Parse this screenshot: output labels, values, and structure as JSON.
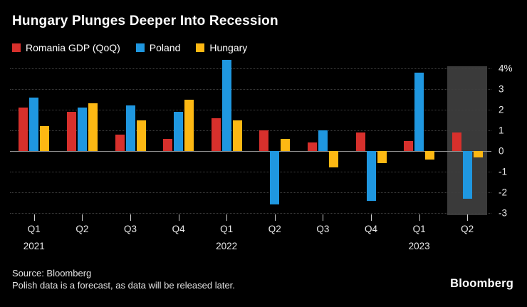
{
  "title": "Hungary Plunges Deeper Into Recession",
  "source": {
    "line1": "Source: Bloomberg",
    "line2": "Polish data is a forecast, as data will be released later."
  },
  "branding": {
    "logo": "Bloomberg"
  },
  "chart_data": {
    "type": "bar",
    "title": "Hungary Plunges Deeper Into Recession",
    "categories": [
      "Q1 2021",
      "Q2 2021",
      "Q3 2021",
      "Q4 2021",
      "Q1 2022",
      "Q2 2022",
      "Q3 2022",
      "Q4 2022",
      "Q1 2023",
      "Q2 2023"
    ],
    "x_tick_labels": [
      "Q1",
      "Q2",
      "Q3",
      "Q4",
      "Q1",
      "Q2",
      "Q3",
      "Q4",
      "Q1",
      "Q2"
    ],
    "year_labels": [
      {
        "label": "2021",
        "group_index": 0
      },
      {
        "label": "2022",
        "group_index": 4
      },
      {
        "label": "2023",
        "group_index": 8
      }
    ],
    "series": [
      {
        "name": "Romania GDP (QoQ)",
        "color": "#d7302c",
        "values": [
          2.1,
          1.9,
          0.8,
          0.6,
          1.6,
          1.0,
          0.4,
          0.9,
          0.5,
          0.9
        ]
      },
      {
        "name": "Poland",
        "color": "#1f97e0",
        "values": [
          2.6,
          2.1,
          2.2,
          1.9,
          4.4,
          -2.6,
          1.0,
          -2.4,
          3.8,
          -2.3
        ]
      },
      {
        "name": "Hungary",
        "color": "#fdb813",
        "values": [
          1.2,
          2.3,
          1.5,
          2.5,
          1.5,
          0.6,
          -0.8,
          -0.6,
          -0.4,
          -0.3
        ]
      }
    ],
    "ylim": [
      -3,
      4
    ],
    "y_ticks": [
      4,
      3,
      2,
      1,
      0,
      -1,
      -2,
      -3
    ],
    "y_tick_labels": [
      "4%",
      "3",
      "2",
      "1",
      "0",
      "-1",
      "-2",
      "-3"
    ],
    "grid": "dotted-horizontal",
    "legend_position": "top-left",
    "background_color": "#000000",
    "highlight": {
      "group_index": 9,
      "group_label": "Q2 2023",
      "color": "#3a3a3a"
    }
  }
}
